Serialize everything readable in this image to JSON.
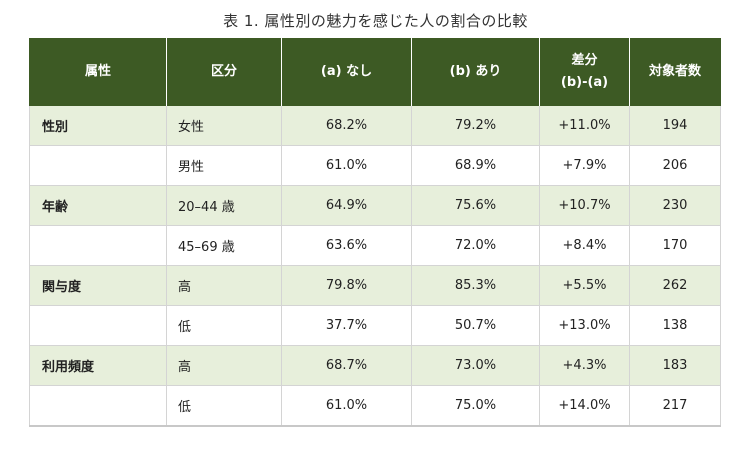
{
  "caption": "表 1. 属性別の魅力を感じた人の割合の比較",
  "header": {
    "attribute": "属性",
    "segment": "区分",
    "without": "(a) なし",
    "with": "(b) あり",
    "diff_line1": "差分",
    "diff_line2": "(b)-(a)",
    "count": "対象者数"
  },
  "rows": [
    {
      "attribute": "性別",
      "segment": "女性",
      "without": "68.2%",
      "with": "79.2%",
      "diff": "+11.0%",
      "count": "194"
    },
    {
      "attribute": "",
      "segment": "男性",
      "without": "61.0%",
      "with": "68.9%",
      "diff": "+7.9%",
      "count": "206"
    },
    {
      "attribute": "年齢",
      "segment": "20–44 歳",
      "without": "64.9%",
      "with": "75.6%",
      "diff": "+10.7%",
      "count": "230"
    },
    {
      "attribute": "",
      "segment": "45–69 歳",
      "without": "63.6%",
      "with": "72.0%",
      "diff": "+8.4%",
      "count": "170"
    },
    {
      "attribute": "関与度",
      "segment": "高",
      "without": "79.8%",
      "with": "85.3%",
      "diff": "+5.5%",
      "count": "262"
    },
    {
      "attribute": "",
      "segment": "低",
      "without": "37.7%",
      "with": "50.7%",
      "diff": "+13.0%",
      "count": "138"
    },
    {
      "attribute": "利用頻度",
      "segment": "高",
      "without": "68.7%",
      "with": "73.0%",
      "diff": "+4.3%",
      "count": "183"
    },
    {
      "attribute": "",
      "segment": "低",
      "without": "61.0%",
      "with": "75.0%",
      "diff": "+14.0%",
      "count": "217"
    }
  ],
  "colors": {
    "header_bg": "#3d5a24",
    "band_bg": "#e7efdb",
    "border": "#d4d4d4"
  }
}
